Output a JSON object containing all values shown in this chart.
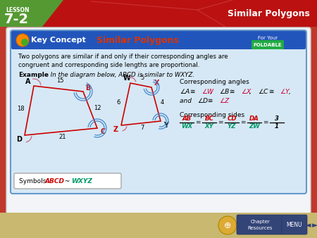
{
  "bg_color": "#c0392b",
  "card_bg": "#d6e8f5",
  "card_border": "#6699cc",
  "header_bg": "#2255bb",
  "header_title_color": "#dd3300",
  "lesson_label": "LESSON",
  "lesson_number": "7-2",
  "top_right_title": "Similar Polygons",
  "foldable_bg": "#22aa44",
  "body_line1": "Two polygons are similar if and only if their corresponding angles are",
  "body_line2": "congruent and corresponding side lengths are proportional.",
  "example_bold": "Example",
  "example_rest": " In the diagram below, ABCD is similar to WXYZ.",
  "corr_angles_title": "Corresponding angles",
  "corr_sides_title": "Corresponding sides",
  "poly1_color": "#cc0000",
  "poly2_color": "#cc0000",
  "label_B_color": "#cc0000",
  "label_C_color": "#cc0000",
  "label_X_color": "#cc0000",
  "label_Z_color": "#cc0000",
  "angle_pink": "#cc6688",
  "angle_blue": "#4488cc",
  "frac_num_color": "#cc0000",
  "frac_den_color": "#009966",
  "symbols_ABCD_color": "#cc0000",
  "symbols_WXYZ_color": "#009966",
  "nav_bg": "#c8b870"
}
